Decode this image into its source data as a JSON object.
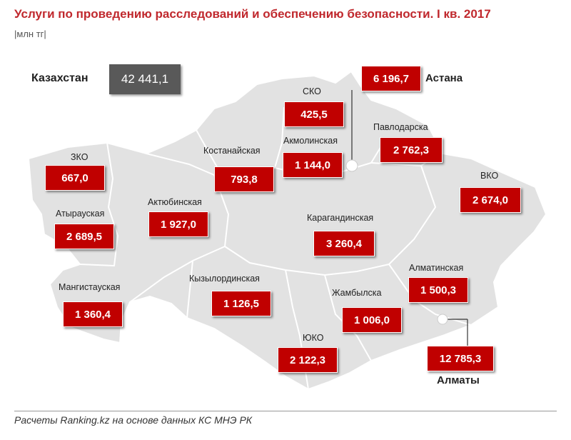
{
  "title": "Услуги по проведению расследований и обеспечению безопасности. I кв. 2017",
  "unit": "|млн тг|",
  "total": {
    "label": "Казахстан",
    "value": "42 441,1"
  },
  "regions": {
    "zko": {
      "label": "ЗКО",
      "value": "667,0"
    },
    "atyrau": {
      "label": "Атырауская",
      "value": "2 689,5"
    },
    "mangystau": {
      "label": "Мангистауская",
      "value": "1 360,4"
    },
    "aktobe": {
      "label": "Актюбинская",
      "value": "1 927,0"
    },
    "kostanay": {
      "label": "Костанайская",
      "value": "793,8"
    },
    "sko": {
      "label": "СКО",
      "value": "425,5"
    },
    "akmola": {
      "label": "Акмолинская",
      "value": "1 144,0"
    },
    "pavlodar": {
      "label": "Павлодарска",
      "value": "2 762,3"
    },
    "vko": {
      "label": "ВКО",
      "value": "2 674,0"
    },
    "karaganda": {
      "label": "Карагандинская",
      "value": "3 260,4"
    },
    "kyzylorda": {
      "label": "Кызылординская",
      "value": "1 126,5"
    },
    "zhambyl": {
      "label": "Жамбылска",
      "value": "1 006,0"
    },
    "almaty_reg": {
      "label": "Алматинская",
      "value": "1 500,3"
    },
    "yuko": {
      "label": "ЮКО",
      "value": "2 122,3"
    }
  },
  "cities": {
    "astana": {
      "label": "Астана",
      "value": "6 196,7"
    },
    "almaty": {
      "label": "Алматы",
      "value": "12 785,3"
    }
  },
  "footer": "Расчеты Ranking.kz на основе данных КС МНЭ РК",
  "colors": {
    "value_box": "#c00000",
    "total_box": "#595959",
    "map_fill": "#e0e0e0",
    "title": "#c0282d"
  }
}
